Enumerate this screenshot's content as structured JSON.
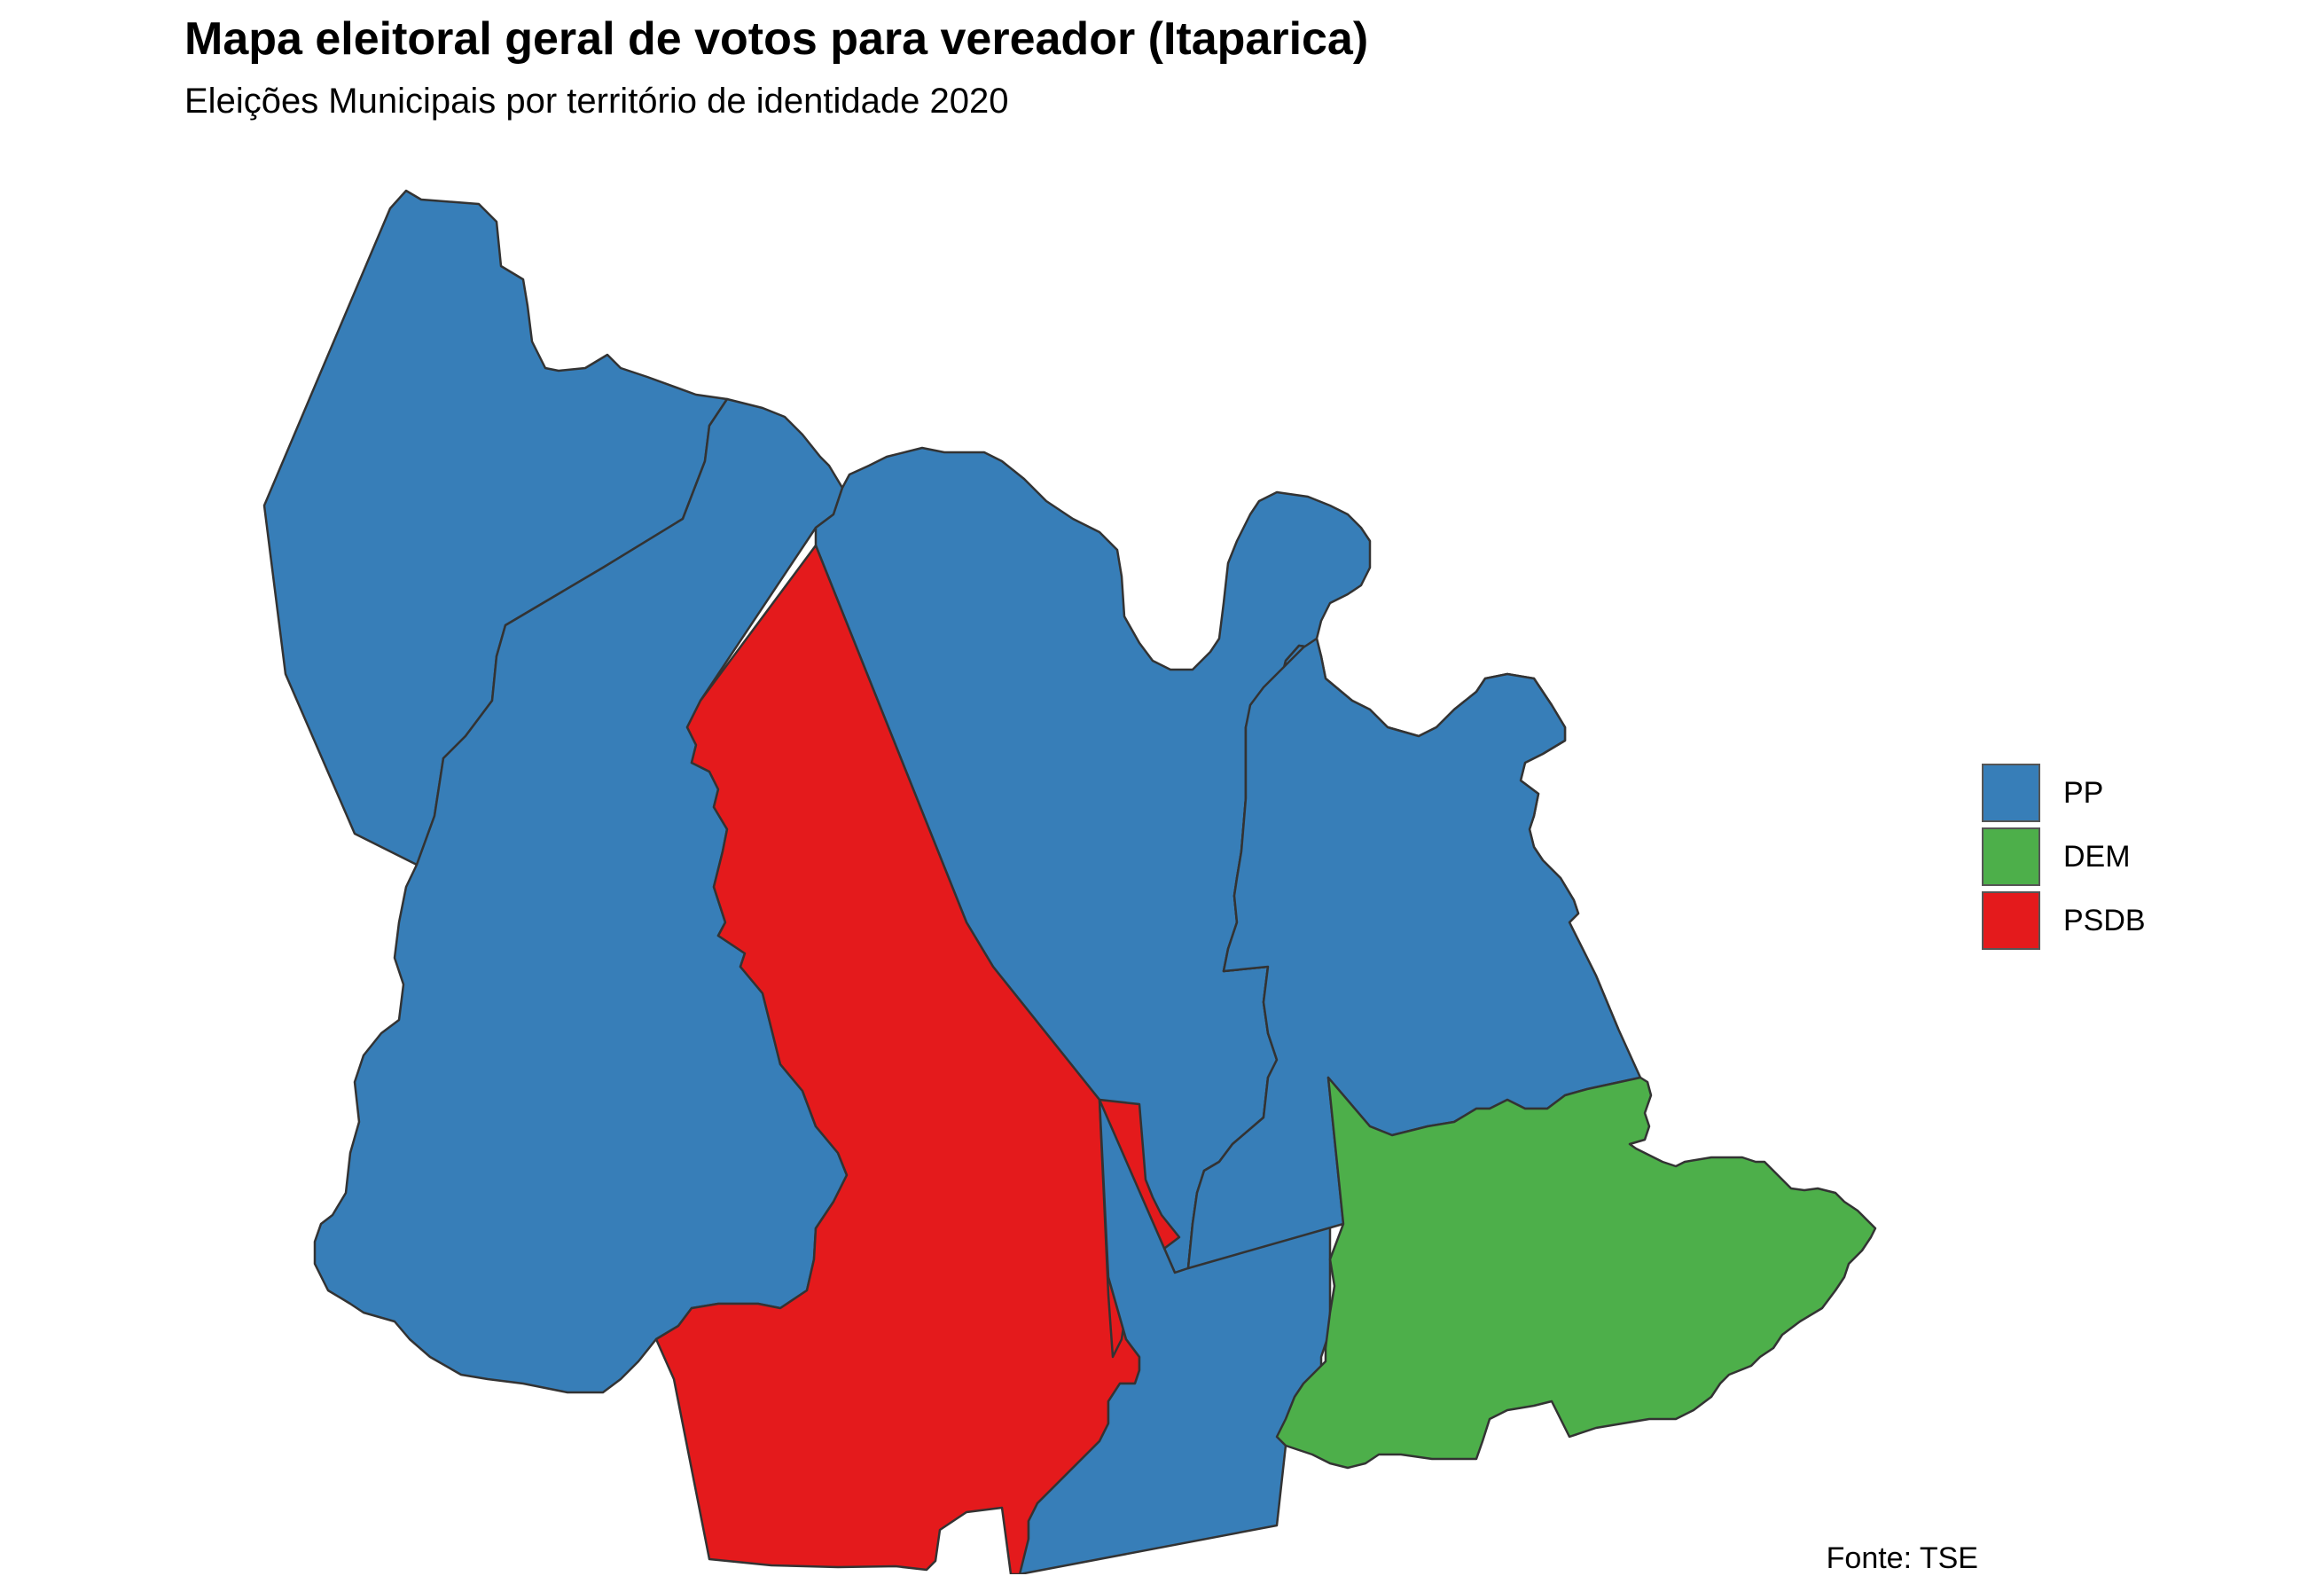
{
  "header": {
    "title": "Mapa eleitoral geral de votos para vereador (Itaparica)",
    "subtitle": "Eleições Municipais por território de identidade 2020"
  },
  "caption": "Fonte: TSE",
  "legend": {
    "items": [
      {
        "label": "PP",
        "color": "#377EB8"
      },
      {
        "label": "DEM",
        "color": "#4DAF4A"
      },
      {
        "label": "PSDB",
        "color": "#E41A1C"
      }
    ]
  },
  "regions": [
    {
      "id": "north-west",
      "party": "PP"
    },
    {
      "id": "west",
      "party": "PP"
    },
    {
      "id": "center-north",
      "party": "PP"
    },
    {
      "id": "center",
      "party": "PSDB"
    },
    {
      "id": "center-south",
      "party": "PP"
    },
    {
      "id": "east",
      "party": "PP"
    },
    {
      "id": "south-east",
      "party": "DEM"
    }
  ]
}
